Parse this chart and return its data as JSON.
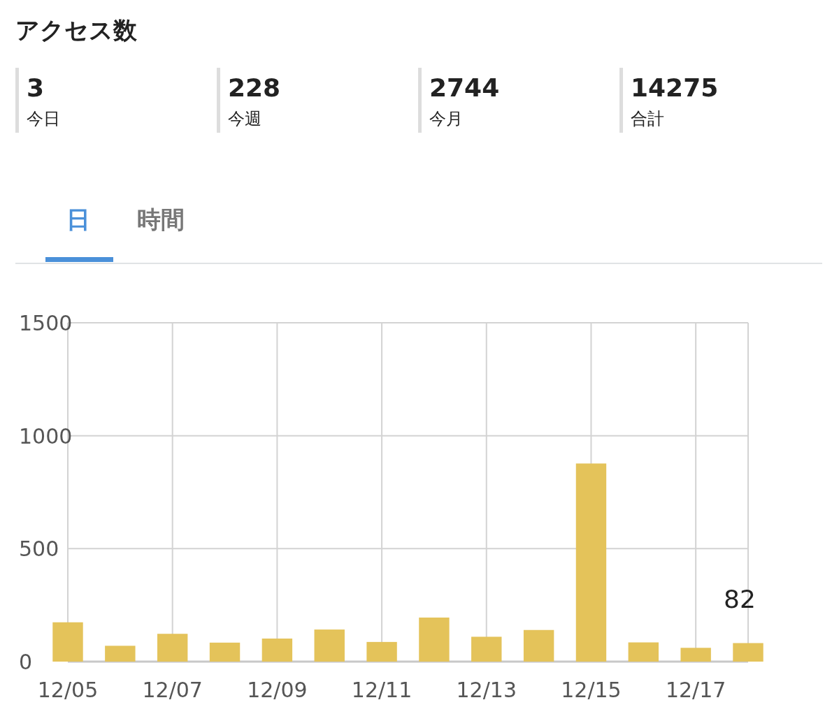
{
  "chart_data": [
    {
      "type": "other",
      "title": "アクセス数",
      "annotations": [
        "3",
        "今日",
        "228",
        "今週",
        "2744",
        "今月",
        "14275",
        "合計"
      ]
    },
    {
      "type": "bar",
      "annotations": [
        "日",
        "時間"
      ],
      "categories": [
        "12/05",
        null,
        "12/07",
        null,
        "12/09",
        null,
        "12/11",
        null,
        "12/13",
        null,
        "12/15",
        null,
        "12/17",
        null
      ],
      "values": [
        174,
        70,
        123,
        84,
        102,
        142,
        87,
        195,
        110,
        140,
        877,
        85,
        61,
        82
      ],
      "value_labels": [
        null,
        null,
        null,
        null,
        null,
        null,
        null,
        null,
        null,
        null,
        null,
        null,
        null,
        "82"
      ],
      "color": "#e4c35a",
      "ylim": [
        0,
        1500
      ],
      "yticks": [
        0,
        500,
        1000,
        1500
      ],
      "grid": true
    }
  ]
}
